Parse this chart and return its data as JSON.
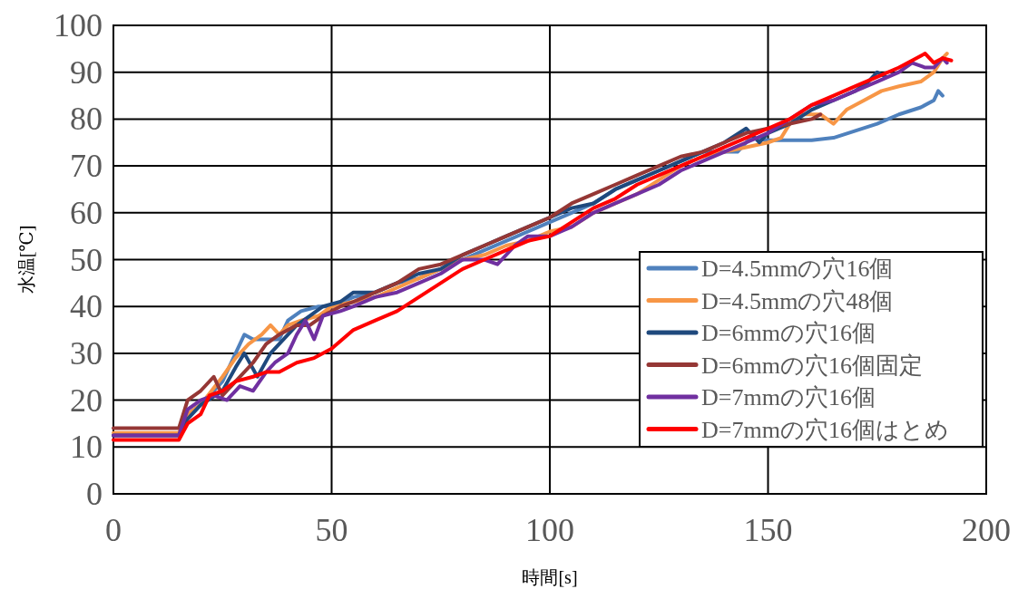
{
  "chart_data": {
    "type": "line",
    "xlabel": "時間[s]",
    "ylabel": "水温[℃]",
    "xlim": [
      0,
      200
    ],
    "ylim": [
      0,
      100
    ],
    "xticks": [
      0,
      50,
      100,
      150,
      200
    ],
    "yticks": [
      0,
      10,
      20,
      30,
      40,
      50,
      60,
      70,
      80,
      90,
      100
    ],
    "grid": true,
    "legend": "bottom right",
    "marker": "none",
    "line_style": "solid",
    "series": [
      {
        "name": "D=4.5mmの穴16個",
        "color": "#4f81bd",
        "x": [
          0,
          15,
          17,
          20,
          25,
          28,
          30,
          32,
          35,
          38,
          40,
          43,
          47,
          50,
          55,
          60,
          65,
          70,
          75,
          80,
          85,
          90,
          95,
          100,
          105,
          110,
          115,
          120,
          125,
          130,
          135,
          140,
          143,
          146,
          150,
          155,
          160,
          165,
          170,
          175,
          180,
          185,
          188,
          189,
          190
        ],
        "values": [
          12.5,
          12.5,
          17,
          19,
          24,
          30,
          34,
          33,
          33,
          33,
          37,
          39,
          40,
          40,
          42,
          43,
          45,
          46,
          48,
          50,
          52,
          54,
          56,
          58,
          60,
          62,
          65,
          67,
          69,
          71,
          73,
          73,
          73,
          76,
          75.5,
          75.5,
          75.5,
          76,
          77.5,
          79,
          81,
          82.5,
          84,
          86,
          85
        ]
      },
      {
        "name": "D=4.5mmの穴48個",
        "color": "#f79646",
        "x": [
          0,
          15,
          17,
          20,
          25,
          28,
          31,
          34,
          36,
          38,
          40,
          43,
          47,
          50,
          55,
          60,
          65,
          70,
          75,
          80,
          85,
          90,
          95,
          100,
          105,
          110,
          115,
          120,
          125,
          130,
          135,
          140,
          145,
          150,
          153,
          155,
          158,
          162,
          165,
          168,
          172,
          176,
          180,
          185,
          188,
          190,
          191
        ],
        "values": [
          13,
          13,
          17,
          19,
          25,
          29,
          32,
          34,
          36,
          34,
          36,
          37,
          38,
          40,
          41,
          42,
          44,
          46,
          48,
          50,
          51,
          53,
          54,
          56,
          57,
          60,
          62,
          64,
          67,
          70,
          72,
          73,
          74,
          75,
          76,
          79,
          81,
          81,
          79,
          82,
          84,
          86,
          87,
          88,
          90,
          93,
          94
        ]
      },
      {
        "name": "D=6mmの穴16個",
        "color": "#1f497d",
        "x": [
          0,
          15,
          17,
          20,
          25,
          28,
          30,
          33,
          36,
          39,
          42,
          45,
          48,
          52,
          55,
          60,
          65,
          70,
          75,
          80,
          85,
          90,
          95,
          100,
          105,
          110,
          115,
          120,
          125,
          130,
          135,
          140,
          145,
          148,
          150,
          155,
          160,
          165,
          170,
          173,
          175,
          177
        ],
        "values": [
          12.5,
          12.5,
          16,
          19,
          22,
          27,
          30,
          25,
          30,
          33,
          36,
          38,
          40,
          41,
          43,
          43,
          45,
          47,
          48,
          51,
          53,
          55,
          57,
          59,
          61,
          62,
          65,
          67,
          69,
          71,
          73,
          75,
          78,
          75,
          77,
          79,
          82,
          84,
          86,
          88,
          90,
          89
        ]
      },
      {
        "name": "D=6mmの穴16個固定",
        "color": "#953735",
        "x": [
          0,
          15,
          17,
          20,
          23,
          25,
          28,
          32,
          35,
          38,
          42,
          45,
          48,
          52,
          55,
          60,
          65,
          70,
          75,
          80,
          85,
          90,
          95,
          100,
          105,
          110,
          115,
          120,
          125,
          130,
          135,
          140,
          145,
          150,
          155,
          160,
          162
        ],
        "values": [
          14,
          14,
          20,
          22,
          25,
          21,
          24,
          28,
          32,
          34,
          36,
          36,
          38,
          40,
          41,
          43,
          45,
          48,
          49,
          51,
          53,
          55,
          57,
          59,
          62,
          64,
          66,
          68,
          70,
          72,
          73,
          75,
          77,
          78,
          79,
          80,
          81
        ]
      },
      {
        "name": "D=7mmの穴16個",
        "color": "#7030a0",
        "x": [
          0,
          15,
          17,
          20,
          23,
          26,
          29,
          32,
          35,
          37,
          40,
          42,
          44,
          46,
          48,
          52,
          55,
          60,
          65,
          70,
          75,
          80,
          85,
          88,
          92,
          95,
          100,
          105,
          110,
          115,
          120,
          125,
          130,
          135,
          140,
          145,
          150,
          155,
          160,
          165,
          170,
          175,
          180,
          183,
          186,
          188,
          190,
          191
        ],
        "values": [
          12.5,
          12.5,
          18,
          20,
          21,
          20,
          23,
          22,
          26,
          28,
          30,
          34,
          37,
          33,
          38,
          39,
          40,
          42,
          43,
          45,
          47,
          50,
          50,
          49,
          53,
          55,
          55,
          57,
          60,
          62,
          64,
          66,
          69,
          71,
          73,
          75,
          77,
          80,
          83,
          84,
          86,
          88,
          90,
          92,
          91,
          91,
          93,
          92
        ]
      },
      {
        "name": "D=7mmの穴16個はとめ",
        "color": "#ff0000",
        "x": [
          0,
          15,
          17,
          20,
          22,
          25,
          28,
          32,
          35,
          38,
          42,
          46,
          50,
          55,
          60,
          65,
          70,
          75,
          80,
          85,
          90,
          95,
          100,
          105,
          110,
          115,
          120,
          125,
          130,
          135,
          140,
          145,
          150,
          155,
          160,
          165,
          170,
          175,
          180,
          184,
          186,
          188,
          190,
          192
        ],
        "values": [
          11.5,
          11.5,
          15,
          17,
          21,
          22,
          24,
          25,
          26,
          26,
          28,
          29,
          31,
          35,
          37,
          39,
          42,
          45,
          48,
          50,
          52,
          54,
          55,
          58,
          61,
          63,
          66,
          68,
          70,
          72,
          74,
          76,
          78,
          80,
          83,
          85,
          87,
          89,
          91,
          93,
          94,
          92,
          93,
          92.5
        ]
      }
    ]
  }
}
